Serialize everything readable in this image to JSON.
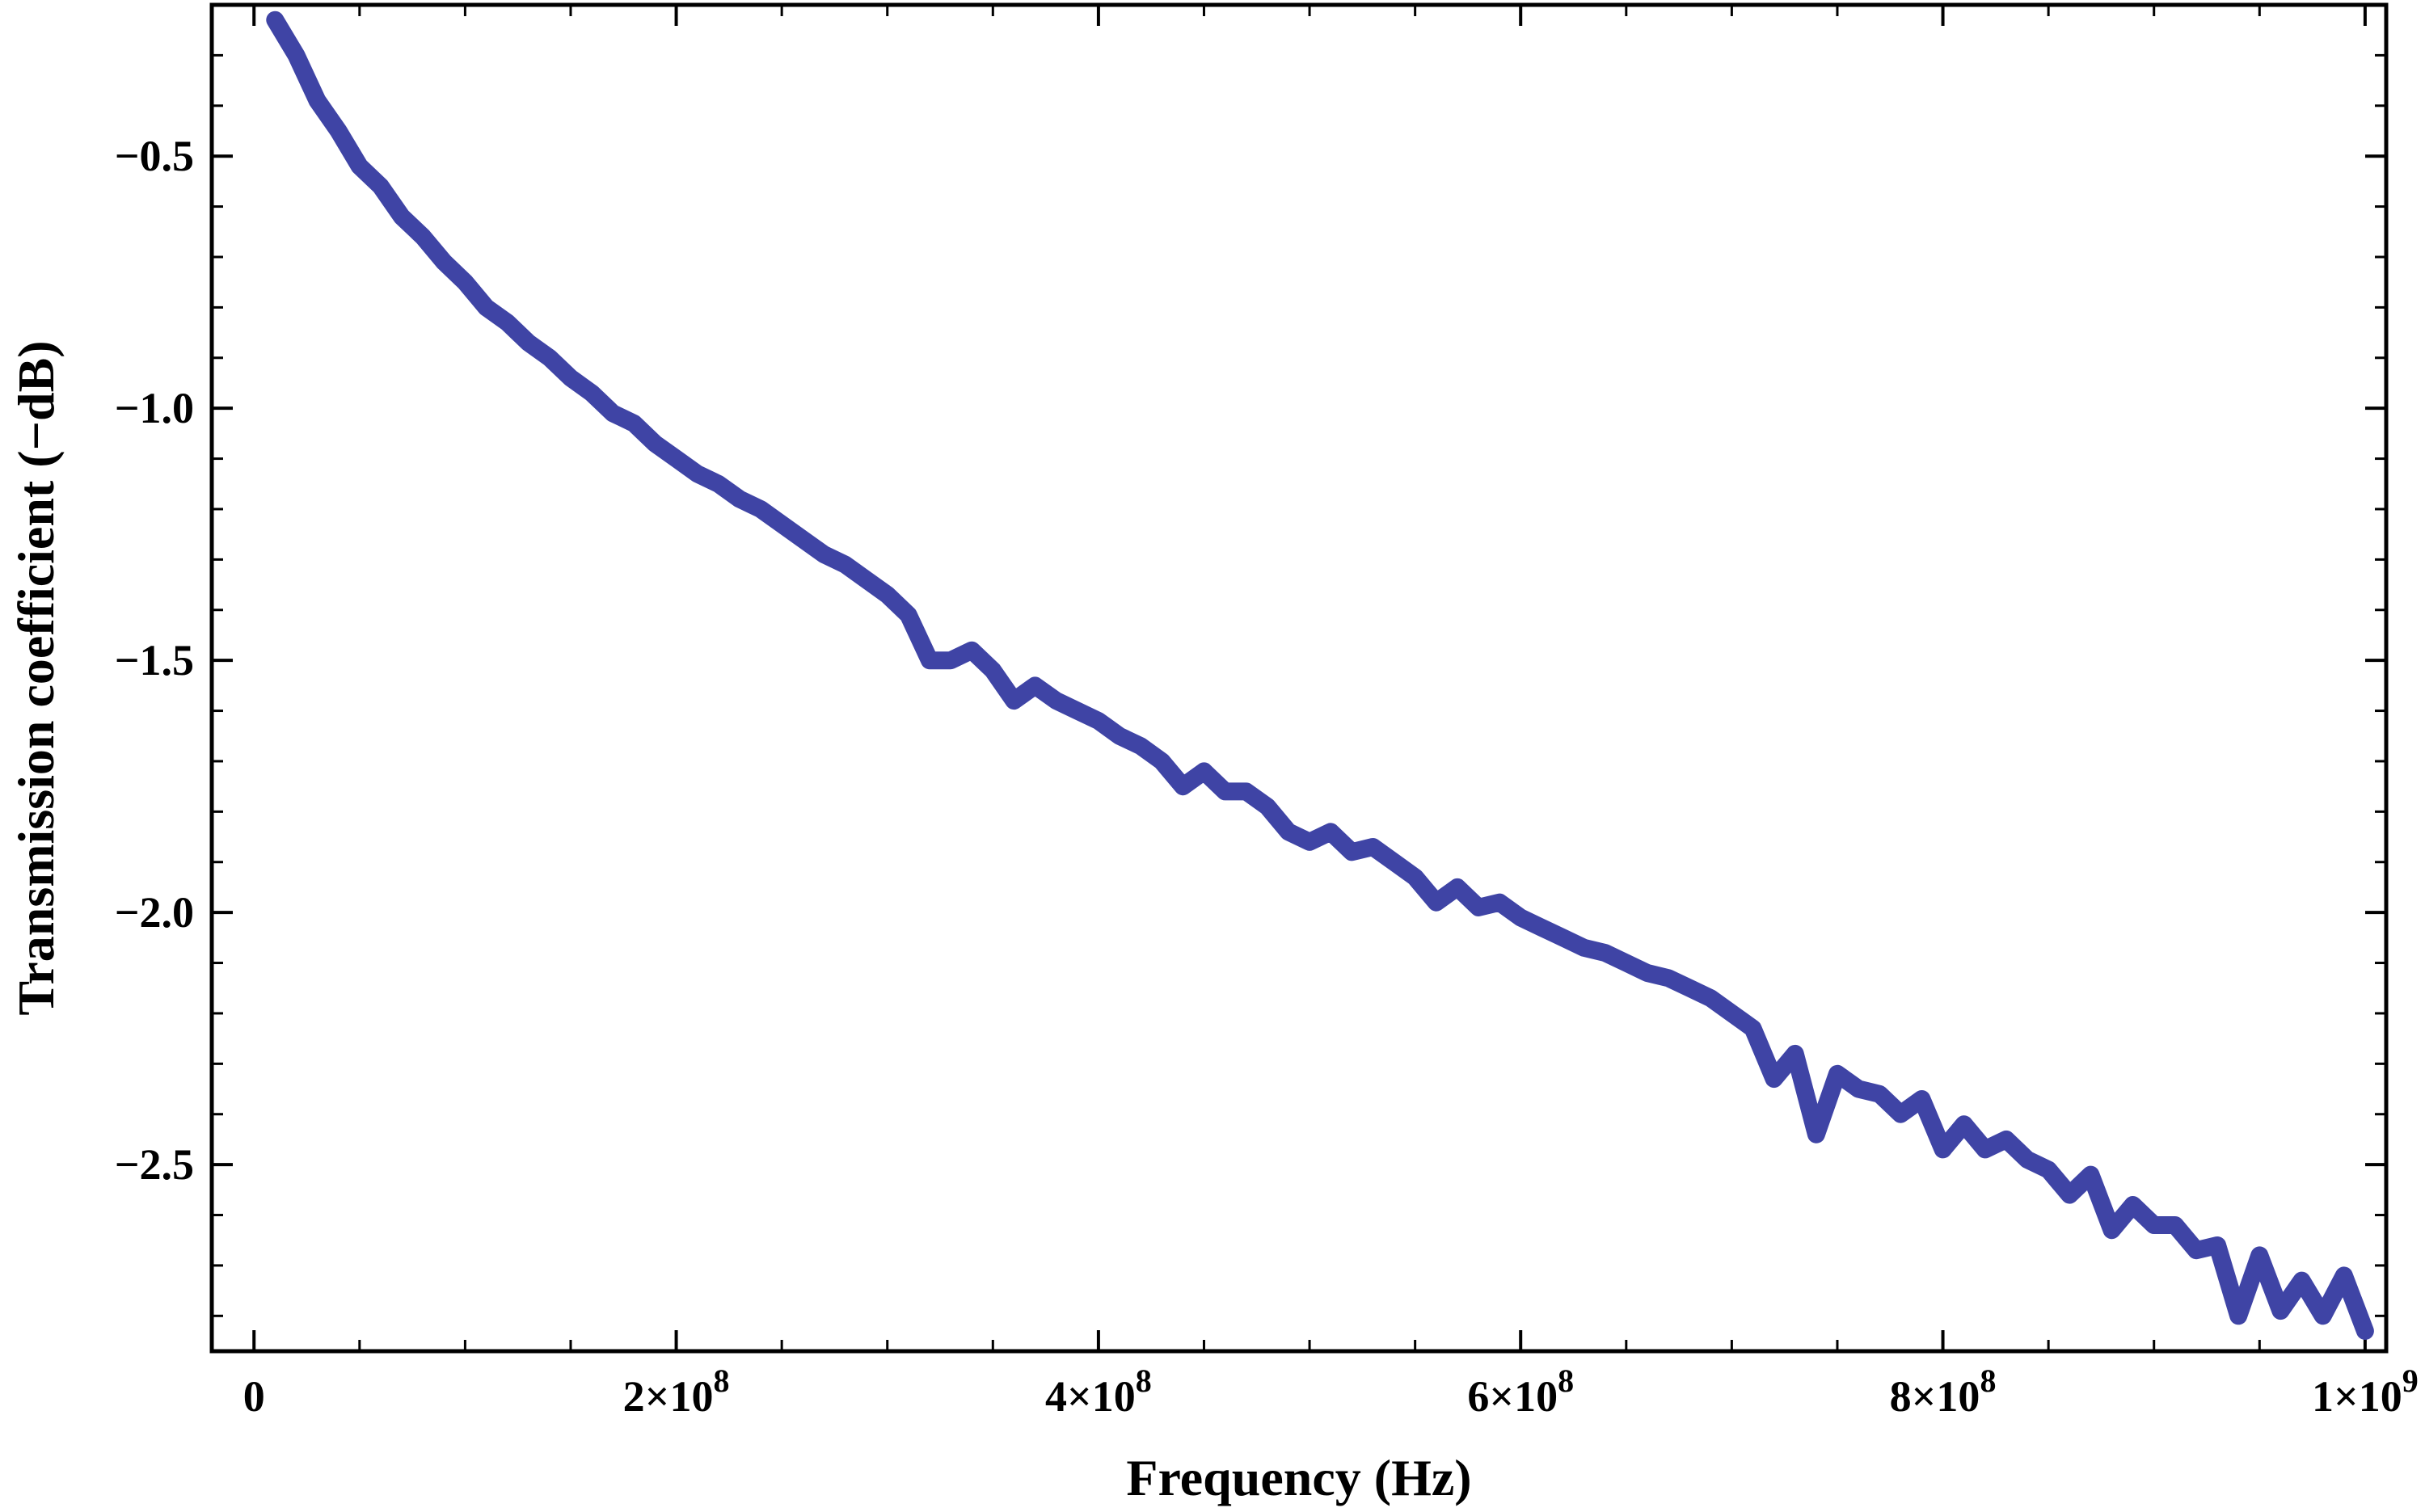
{
  "chart_data": {
    "type": "line",
    "title": "",
    "xlabel": "Frequency (Hz)",
    "ylabel": "Transmission coefficient (−dB)",
    "xlim": [
      -20000000.0,
      1010000000.0
    ],
    "ylim": [
      -2.87,
      -0.2
    ],
    "grid": false,
    "legend": "none",
    "colors": {
      "line": "#3f44a5",
      "frame": "#000000"
    },
    "x_ticks": [
      {
        "value": 0,
        "base": "0",
        "exp": ""
      },
      {
        "value": 200000000,
        "base": "2×10",
        "exp": "8"
      },
      {
        "value": 400000000,
        "base": "4×10",
        "exp": "8"
      },
      {
        "value": 600000000,
        "base": "6×10",
        "exp": "8"
      },
      {
        "value": 800000000,
        "base": "8×10",
        "exp": "8"
      },
      {
        "value": 1000000000,
        "base": "1×10",
        "exp": "9"
      }
    ],
    "y_ticks": [
      {
        "value": -0.5,
        "label": "−0.5"
      },
      {
        "value": -1.0,
        "label": "−1.0"
      },
      {
        "value": -1.5,
        "label": "−1.5"
      },
      {
        "value": -2.0,
        "label": "−2.0"
      },
      {
        "value": -2.5,
        "label": "−2.5"
      }
    ],
    "series": [
      {
        "x": [
          10000000,
          20000000,
          30000000,
          40000000,
          50000000,
          60000000,
          70000000,
          80000000,
          90000000,
          100000000,
          110000000,
          120000000,
          130000000,
          140000000,
          150000000,
          160000000,
          170000000,
          180000000,
          190000000,
          200000000,
          210000000,
          220000000,
          230000000,
          240000000,
          250000000,
          260000000,
          270000000,
          280000000,
          290000000,
          300000000,
          310000000,
          320000000,
          330000000,
          340000000,
          350000000,
          360000000,
          370000000,
          380000000,
          390000000,
          400000000,
          410000000,
          420000000,
          430000000,
          440000000,
          450000000,
          460000000,
          470000000,
          480000000,
          490000000,
          500000000,
          510000000,
          520000000,
          530000000,
          540000000,
          550000000,
          560000000,
          570000000,
          580000000,
          590000000,
          600000000,
          610000000,
          620000000,
          630000000,
          640000000,
          650000000,
          660000000,
          670000000,
          680000000,
          690000000,
          700000000,
          710000000,
          720000000,
          730000000,
          740000000,
          750000000,
          760000000,
          770000000,
          780000000,
          790000000,
          800000000,
          810000000,
          820000000,
          830000000,
          840000000,
          850000000,
          860000000,
          870000000,
          880000000,
          890000000,
          900000000,
          910000000,
          920000000,
          930000000,
          940000000,
          950000000,
          960000000,
          970000000,
          980000000,
          990000000,
          1000000000
        ],
        "y": [
          -0.23,
          -0.3,
          -0.39,
          -0.45,
          -0.52,
          -0.56,
          -0.62,
          -0.66,
          -0.71,
          -0.75,
          -0.8,
          -0.83,
          -0.87,
          -0.9,
          -0.94,
          -0.97,
          -1.01,
          -1.03,
          -1.07,
          -1.1,
          -1.13,
          -1.15,
          -1.18,
          -1.2,
          -1.23,
          -1.26,
          -1.29,
          -1.31,
          -1.34,
          -1.37,
          -1.41,
          -1.5,
          -1.5,
          -1.48,
          -1.52,
          -1.58,
          -1.55,
          -1.58,
          -1.6,
          -1.62,
          -1.65,
          -1.67,
          -1.7,
          -1.75,
          -1.72,
          -1.76,
          -1.76,
          -1.79,
          -1.84,
          -1.86,
          -1.84,
          -1.88,
          -1.87,
          -1.9,
          -1.93,
          -1.98,
          -1.95,
          -1.99,
          -1.98,
          -2.01,
          -2.03,
          -2.05,
          -2.07,
          -2.08,
          -2.1,
          -2.12,
          -2.13,
          -2.15,
          -2.17,
          -2.2,
          -2.23,
          -2.33,
          -2.28,
          -2.44,
          -2.32,
          -2.35,
          -2.36,
          -2.4,
          -2.37,
          -2.47,
          -2.42,
          -2.47,
          -2.45,
          -2.49,
          -2.51,
          -2.56,
          -2.52,
          -2.63,
          -2.58,
          -2.62,
          -2.62,
          -2.67,
          -2.66,
          -2.8,
          -2.68,
          -2.79,
          -2.73,
          -2.8,
          -2.72,
          -2.83
        ]
      }
    ]
  }
}
